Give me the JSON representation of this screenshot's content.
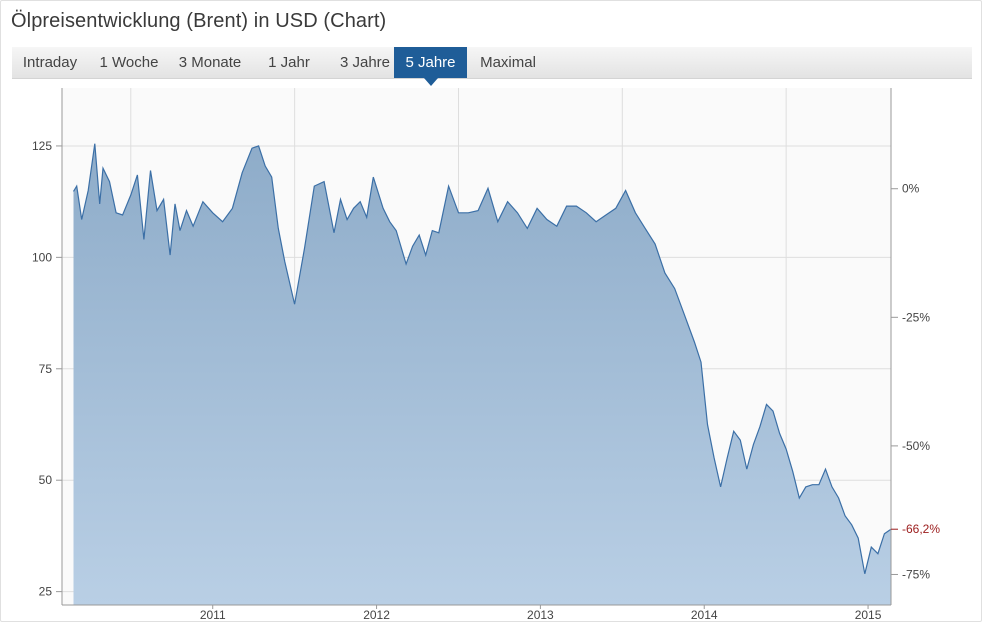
{
  "title": "Ölpreisentwicklung (Brent) in USD (Chart)",
  "tabs": [
    {
      "label": "Intraday",
      "active": false
    },
    {
      "label": "1 Woche",
      "active": false
    },
    {
      "label": "3 Monate",
      "active": false
    },
    {
      "label": "1 Jahr",
      "active": false
    },
    {
      "label": "3 Jahre",
      "active": false
    },
    {
      "label": "5 Jahre",
      "active": true
    },
    {
      "label": "Maximal",
      "active": false
    }
  ],
  "colors": {
    "accent": "#1f5d98",
    "line": "#3b6fa6",
    "area_top": "#8eacc9",
    "area_bottom": "#b9cfe5",
    "negative_label": "#9b1b1b"
  },
  "chart_data": {
    "type": "area",
    "title": "Ölpreisentwicklung (Brent) in USD (Chart)",
    "xlabel": "",
    "ylabel": "",
    "x_range": [
      2010.58,
      2015.64
    ],
    "ylim": [
      22,
      138
    ],
    "grid": true,
    "y_ticks": [
      25,
      50,
      75,
      100,
      125
    ],
    "x_ticks": [
      {
        "label": "2011",
        "pos": 2011.0
      },
      {
        "label": "2012",
        "pos": 2012.0
      },
      {
        "label": "2013",
        "pos": 2013.0
      },
      {
        "label": "2014",
        "pos": 2014.0
      },
      {
        "label": "2015",
        "pos": 2015.0
      }
    ],
    "percent_axis": {
      "base": 115.4,
      "ticks": [
        {
          "label": "0%",
          "pct": 0
        },
        {
          "label": "-25%",
          "pct": -25
        },
        {
          "label": "-50%",
          "pct": -50
        },
        {
          "label": "-75%",
          "pct": -75
        }
      ],
      "current": {
        "label": "-66,2%",
        "pct": -66.2
      }
    },
    "series": [
      {
        "x": [
          2010.65,
          2010.67,
          2010.7,
          2010.74,
          2010.78,
          2010.81,
          2010.83,
          2010.87,
          2010.91,
          2010.95,
          2011.0,
          2011.04,
          2011.08,
          2011.12,
          2011.16,
          2011.2,
          2011.24,
          2011.27,
          2011.3,
          2011.34,
          2011.38,
          2011.44,
          2011.5,
          2011.56,
          2011.62,
          2011.68,
          2011.74,
          2011.78,
          2011.82,
          2011.86,
          2011.9,
          2011.94,
          2012.0,
          2012.06,
          2012.12,
          2012.18,
          2012.24,
          2012.28,
          2012.32,
          2012.36,
          2012.4,
          2012.44,
          2012.48,
          2012.54,
          2012.58,
          2012.62,
          2012.68,
          2012.72,
          2012.76,
          2012.8,
          2012.84,
          2012.88,
          2012.94,
          2013.0,
          2013.06,
          2013.12,
          2013.18,
          2013.24,
          2013.3,
          2013.36,
          2013.42,
          2013.48,
          2013.54,
          2013.6,
          2013.66,
          2013.72,
          2013.78,
          2013.84,
          2013.9,
          2013.96,
          2014.02,
          2014.08,
          2014.14,
          2014.2,
          2014.26,
          2014.32,
          2014.38,
          2014.44,
          2014.48,
          2014.52,
          2014.56,
          2014.6,
          2014.64,
          2014.68,
          2014.72,
          2014.76,
          2014.8,
          2014.84,
          2014.88,
          2014.92,
          2014.96,
          2015.0,
          2015.04,
          2015.08,
          2015.12,
          2015.16,
          2015.2,
          2015.24,
          2015.28,
          2015.32,
          2015.36,
          2015.4,
          2015.44,
          2015.48,
          2015.52,
          2015.56,
          2015.6,
          2015.64
        ],
        "values": [
          114.8,
          116.0,
          108.5,
          115.0,
          125.5,
          112.0,
          120.0,
          117.0,
          110.0,
          109.5,
          114.0,
          118.5,
          104.0,
          119.5,
          110.5,
          113.0,
          100.5,
          112.0,
          106.0,
          110.5,
          107.0,
          112.5,
          110.0,
          108.0,
          111.0,
          119.0,
          124.5,
          125.0,
          120.5,
          118.0,
          106.5,
          99.0,
          89.5,
          102.0,
          116.0,
          117.0,
          105.5,
          113.0,
          108.5,
          111.0,
          112.5,
          109.0,
          118.0,
          111.0,
          108.0,
          106.0,
          98.5,
          102.5,
          105.0,
          100.5,
          106.0,
          105.5,
          116.0,
          110.0,
          110.0,
          110.5,
          115.5,
          108.0,
          112.5,
          110.0,
          106.5,
          111.0,
          108.5,
          107.0,
          111.5,
          111.5,
          110.0,
          108.0,
          109.5,
          111.0,
          115.0,
          110.0,
          106.5,
          103.0,
          96.5,
          93.0,
          87.0,
          81.0,
          76.5,
          62.5,
          55.0,
          48.5,
          55.0,
          61.0,
          59.0,
          52.5,
          58.0,
          62.0,
          67.0,
          65.5,
          60.5,
          57.0,
          52.0,
          46.0,
          48.5,
          49.0,
          49.0,
          52.5,
          48.5,
          46.0,
          42.0,
          40.0,
          37.0,
          29.0,
          35.0,
          33.5,
          38.0,
          39.0
        ]
      }
    ]
  }
}
